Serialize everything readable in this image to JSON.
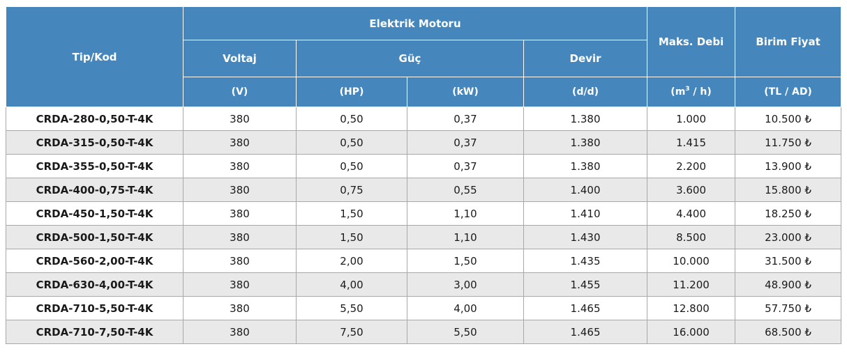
{
  "table": {
    "header": {
      "tip_kod": "Tip/Kod",
      "elektrik_motoru": "Elektrik Motoru",
      "voltaj": "Voltaj",
      "guc": "Güç",
      "devir": "Devir",
      "maks_debi": "Maks. Debi",
      "birim_fiyat": "Birim Fiyat"
    },
    "units": {
      "voltaj": "(V)",
      "hp": "(HP)",
      "kw": "(kW)",
      "devir": "(d/d)",
      "debi_prefix": "(m",
      "debi_sup": "3",
      "debi_suffix": " / h)",
      "fiyat": "(TL / AD)"
    },
    "rows": [
      {
        "code": "CRDA-280-0,50-T-4K",
        "volt": "380",
        "hp": "0,50",
        "kw": "0,37",
        "devir": "1.380",
        "debi": "1.000",
        "fiyat": "10.500 ₺"
      },
      {
        "code": "CRDA-315-0,50-T-4K",
        "volt": "380",
        "hp": "0,50",
        "kw": "0,37",
        "devir": "1.380",
        "debi": "1.415",
        "fiyat": "11.750 ₺"
      },
      {
        "code": "CRDA-355-0,50-T-4K",
        "volt": "380",
        "hp": "0,50",
        "kw": "0,37",
        "devir": "1.380",
        "debi": "2.200",
        "fiyat": "13.900 ₺"
      },
      {
        "code": "CRDA-400-0,75-T-4K",
        "volt": "380",
        "hp": "0,75",
        "kw": "0,55",
        "devir": "1.400",
        "debi": "3.600",
        "fiyat": "15.800 ₺"
      },
      {
        "code": "CRDA-450-1,50-T-4K",
        "volt": "380",
        "hp": "1,50",
        "kw": "1,10",
        "devir": "1.410",
        "debi": "4.400",
        "fiyat": "18.250 ₺"
      },
      {
        "code": "CRDA-500-1,50-T-4K",
        "volt": "380",
        "hp": "1,50",
        "kw": "1,10",
        "devir": "1.430",
        "debi": "8.500",
        "fiyat": "23.000 ₺"
      },
      {
        "code": "CRDA-560-2,00-T-4K",
        "volt": "380",
        "hp": "2,00",
        "kw": "1,50",
        "devir": "1.435",
        "debi": "10.000",
        "fiyat": "31.500 ₺"
      },
      {
        "code": "CRDA-630-4,00-T-4K",
        "volt": "380",
        "hp": "4,00",
        "kw": "3,00",
        "devir": "1.455",
        "debi": "11.200",
        "fiyat": "48.900 ₺"
      },
      {
        "code": "CRDA-710-5,50-T-4K",
        "volt": "380",
        "hp": "5,50",
        "kw": "4,00",
        "devir": "1.465",
        "debi": "12.800",
        "fiyat": "57.750 ₺"
      },
      {
        "code": "CRDA-710-7,50-T-4K",
        "volt": "380",
        "hp": "7,50",
        "kw": "5,50",
        "devir": "1.465",
        "debi": "16.000",
        "fiyat": "68.500 ₺"
      }
    ]
  }
}
